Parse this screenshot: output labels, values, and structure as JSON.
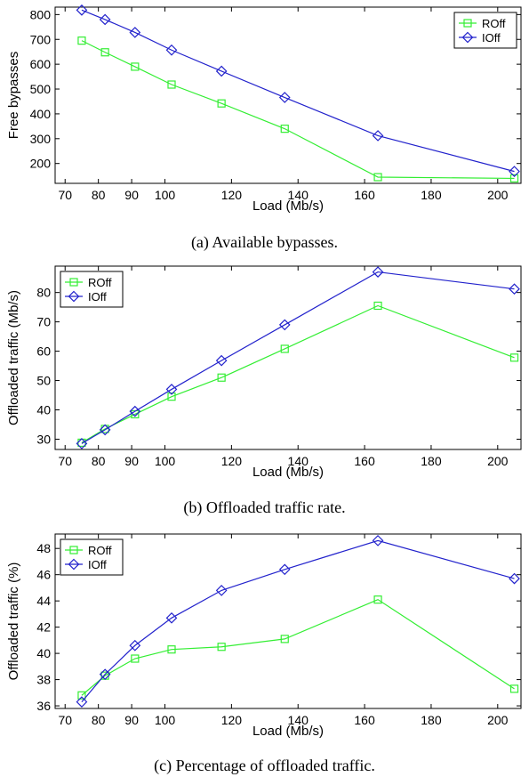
{
  "chart_data": [
    {
      "type": "line",
      "caption": "(a)  Available bypasses.",
      "xlabel": "Load (Mb/s)",
      "ylabel": "Free bypasses",
      "xlim": [
        67,
        207
      ],
      "ylim": [
        120,
        830
      ],
      "xticks": [
        70,
        80,
        90,
        100,
        120,
        140,
        160,
        180,
        200
      ],
      "yticks": [
        200,
        300,
        400,
        500,
        600,
        700,
        800
      ],
      "legend_position": "top-right",
      "x": [
        75,
        82,
        91,
        102,
        117,
        136,
        164,
        205
      ],
      "series": [
        {
          "name": "ROff",
          "color": "#33ee33",
          "marker": "square",
          "values": [
            695,
            648,
            590,
            518,
            442,
            340,
            145,
            140
          ]
        },
        {
          "name": "IOff",
          "color": "#2222cc",
          "marker": "diamond",
          "values": [
            818,
            780,
            728,
            657,
            572,
            466,
            312,
            168
          ]
        }
      ]
    },
    {
      "type": "line",
      "caption": "(b)  Offloaded traffic rate.",
      "xlabel": "Load (Mb/s)",
      "ylabel": "Offloaded traffic (Mb/s)",
      "xlim": [
        67,
        207
      ],
      "ylim": [
        26.5,
        89
      ],
      "xticks": [
        70,
        80,
        90,
        100,
        120,
        140,
        160,
        180,
        200
      ],
      "yticks": [
        30,
        40,
        50,
        60,
        70,
        80
      ],
      "legend_position": "top-left",
      "x": [
        75,
        82,
        91,
        102,
        117,
        136,
        164,
        205
      ],
      "series": [
        {
          "name": "ROff",
          "color": "#33ee33",
          "marker": "square",
          "values": [
            28.8,
            33.5,
            38.5,
            44.5,
            51,
            60.8,
            75.5,
            57.8
          ]
        },
        {
          "name": "IOff",
          "color": "#2222cc",
          "marker": "diamond",
          "values": [
            28.5,
            33.2,
            39.5,
            47,
            56.8,
            69,
            87,
            81.2
          ]
        }
      ]
    },
    {
      "type": "line",
      "caption": "(c)  Percentage of offloaded traffic.",
      "xlabel": "Load (Mb/s)",
      "ylabel": "Offloaded traffic (%)",
      "xlim": [
        67,
        207
      ],
      "ylim": [
        35.8,
        49.1
      ],
      "xticks": [
        70,
        80,
        90,
        100,
        120,
        140,
        160,
        180,
        200
      ],
      "yticks": [
        36,
        38,
        40,
        42,
        44,
        46,
        48
      ],
      "legend_position": "top-left",
      "x": [
        75,
        82,
        91,
        102,
        117,
        136,
        164,
        205
      ],
      "series": [
        {
          "name": "ROff",
          "color": "#33ee33",
          "marker": "square",
          "values": [
            36.8,
            38.3,
            39.6,
            40.3,
            40.5,
            41.1,
            44.1,
            37.3
          ]
        },
        {
          "name": "IOff",
          "color": "#2222cc",
          "marker": "diamond",
          "values": [
            36.3,
            38.4,
            40.6,
            42.7,
            44.8,
            46.4,
            48.6,
            45.7
          ]
        }
      ]
    }
  ]
}
